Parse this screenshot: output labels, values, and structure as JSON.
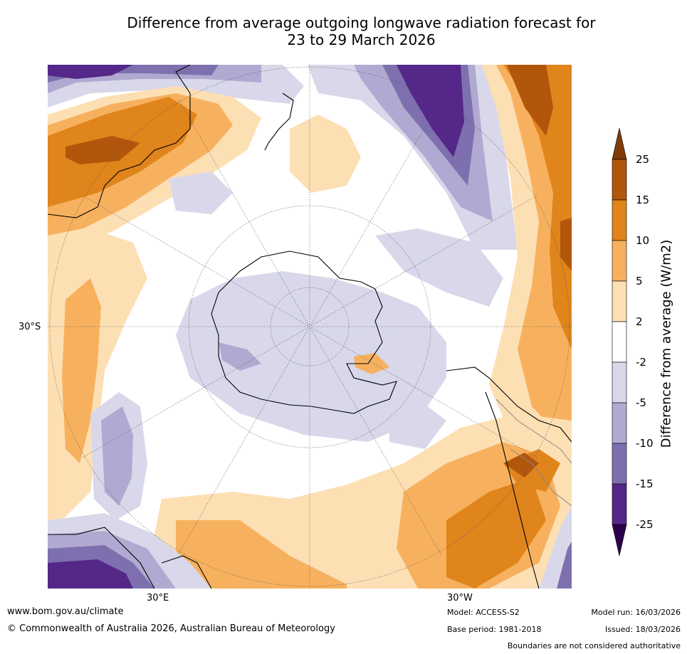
{
  "title": {
    "line1": "Difference from average outgoing longwave radiation forecast for",
    "line2": "23 to 29 March 2026"
  },
  "map": {
    "projection": "south-polar-stereographic",
    "lat_label": "30°S",
    "lon_labels": [
      "30°E",
      "30°W"
    ]
  },
  "colorbar": {
    "title": "Difference from average (W/m2)",
    "ticks": [
      "25",
      "15",
      "10",
      "5",
      "2",
      "-2",
      "-5",
      "-10",
      "-15",
      "-25"
    ],
    "colors": [
      "#b2560c",
      "#e0841c",
      "#f7b15e",
      "#fddfb4",
      "#ffffff",
      "#d8d8ea",
      "#b0aad2",
      "#7e70ae",
      "#542788"
    ],
    "top_arrow_color": "#7f3b08",
    "bottom_arrow_color": "#2d004b"
  },
  "footer": {
    "website": "www.bom.gov.au/climate",
    "copyright": "© Commonwealth of Australia 2026, Australian Bureau of Meteorology",
    "model": "Model: ACCESS-S2",
    "base_period": "Base period: 1981-2018",
    "model_run": "Model run: 16/03/2026",
    "issued": "Issued: 18/03/2026",
    "disclaimer": "Boundaries are not considered authoritative"
  }
}
